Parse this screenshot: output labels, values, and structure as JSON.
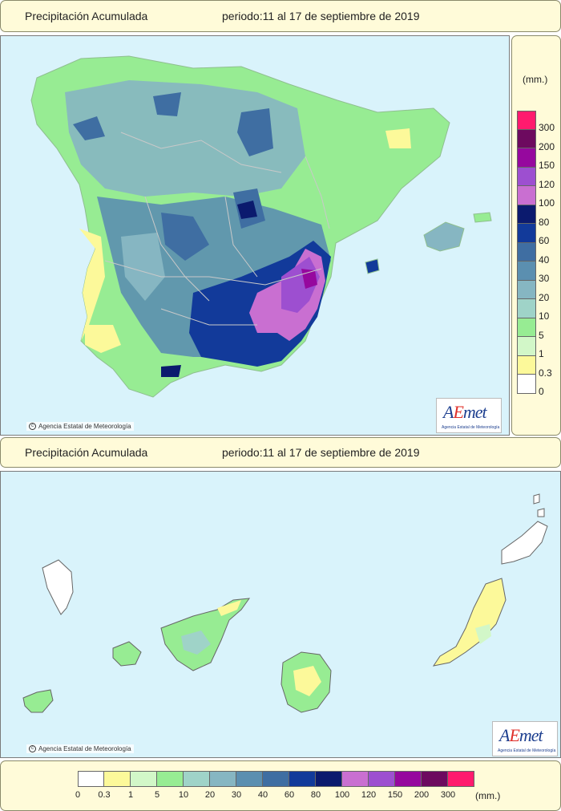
{
  "header": {
    "title": "Precipitación Acumulada",
    "period": "periodo:11 al 17 de septiembre de 2019"
  },
  "credit": "Agencia Estatal de Meteorología",
  "logo": {
    "a": "A",
    "e": "E",
    "met": "met",
    "subtitle": "Agencia Estatal de Meteorología"
  },
  "legend": {
    "unit": "(mm.)",
    "bins": [
      {
        "label": "0",
        "color": "#ffffff"
      },
      {
        "label": "0.3",
        "color": "#fcf99a"
      },
      {
        "label": "1",
        "color": "#d2f7c8"
      },
      {
        "label": "5",
        "color": "#97ec93"
      },
      {
        "label": "10",
        "color": "#9fd3c8"
      },
      {
        "label": "20",
        "color": "#86b6c2"
      },
      {
        "label": "30",
        "color": "#5b8fb0"
      },
      {
        "label": "40",
        "color": "#3f6ea2"
      },
      {
        "label": "60",
        "color": "#123a9a"
      },
      {
        "label": "80",
        "color": "#0b1a6e"
      },
      {
        "label": "100",
        "color": "#c96fd1"
      },
      {
        "label": "120",
        "color": "#9d4fd0"
      },
      {
        "label": "150",
        "color": "#96089e"
      },
      {
        "label": "200",
        "color": "#6d0a5f"
      },
      {
        "label": "300",
        "color": "#ff1a6e"
      }
    ]
  },
  "colors": {
    "sea": "#d9f3fb",
    "panel": "#fffbd9",
    "border": "#8a8a6a",
    "boundary": "#c9c9c9"
  }
}
